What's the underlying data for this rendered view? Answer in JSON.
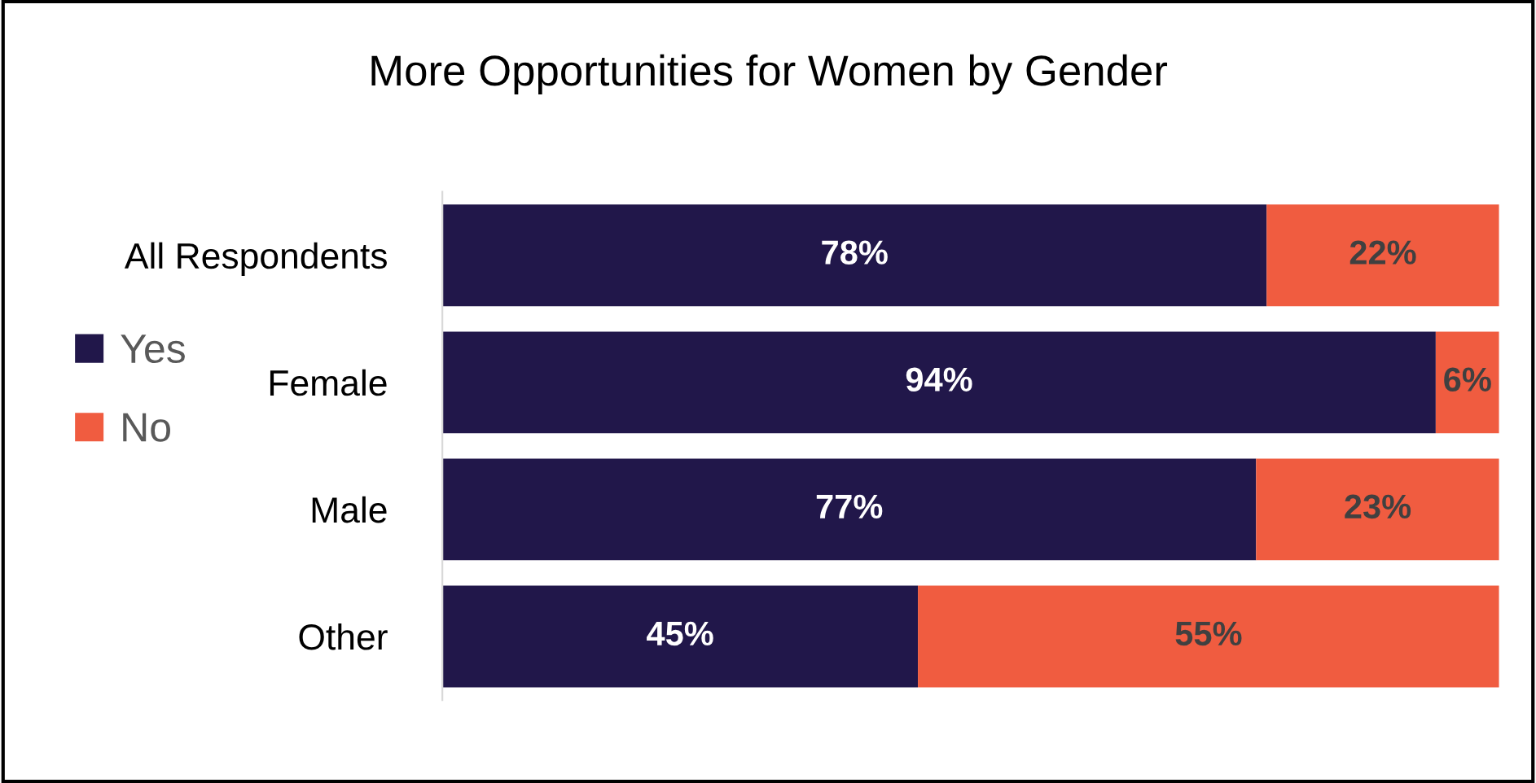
{
  "chart_data": {
    "type": "bar",
    "title": "More Opportunities for Women by Gender",
    "orientation": "horizontal",
    "stacked": true,
    "xlim": [
      0,
      100
    ],
    "tick_labels": "y",
    "data_labels": true,
    "legend": "left",
    "grid": false,
    "categories": [
      "All Respondents",
      "Female",
      "Male",
      "Other"
    ],
    "series": [
      {
        "name": "Yes",
        "color": "#21174a",
        "values": [
          78,
          94,
          77,
          45
        ],
        "value_labels": [
          "78%",
          "94%",
          "77%",
          "45%"
        ]
      },
      {
        "name": "No",
        "color": "#f05c40",
        "values": [
          22,
          6,
          23,
          55
        ],
        "value_labels": [
          "22%",
          "6%",
          "23%",
          "55%"
        ]
      }
    ]
  }
}
